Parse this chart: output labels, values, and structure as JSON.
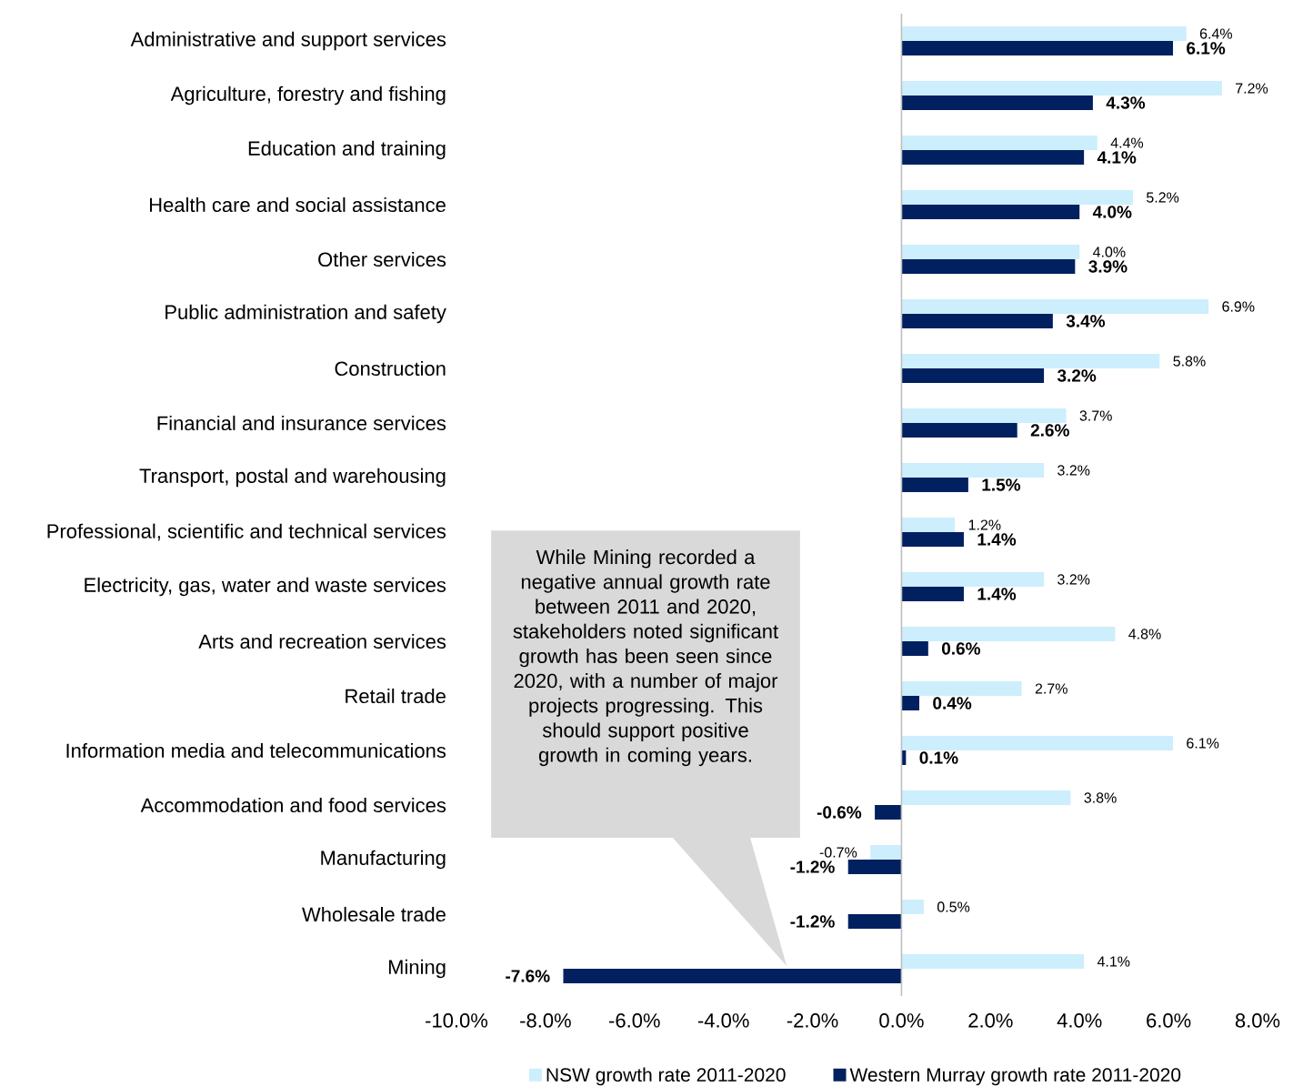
{
  "chart_data": {
    "type": "bar",
    "orientation": "horizontal",
    "categories": [
      "Administrative and support services",
      "Agriculture, forestry and fishing",
      "Education and training",
      "Health care and social assistance",
      "Other services",
      "Public administration and safety",
      "Construction",
      "Financial and insurance services",
      "Transport, postal and warehousing",
      "Professional, scientific and technical services",
      "Electricity, gas, water and waste services",
      "Arts and recreation services",
      "Retail trade",
      "Information media and telecommunications",
      "Accommodation and food services",
      "Manufacturing",
      "Wholesale trade",
      "Mining"
    ],
    "series": [
      {
        "name": "NSW growth rate 2011-2020",
        "color": "#cdeefc",
        "values": [
          6.4,
          7.2,
          4.4,
          5.2,
          4.0,
          6.9,
          5.8,
          3.7,
          3.2,
          1.2,
          3.2,
          4.8,
          2.7,
          6.1,
          3.8,
          -0.7,
          0.5,
          4.1
        ],
        "value_labels": [
          "6.4%",
          "7.2%",
          "4.4%",
          "5.2%",
          "4.0%",
          "6.9%",
          "5.8%",
          "3.7%",
          "3.2%",
          "1.2%",
          "3.2%",
          "4.8%",
          "2.7%",
          "6.1%",
          "3.8%",
          "-0.7%",
          "0.5%",
          "4.1%"
        ]
      },
      {
        "name": "Western Murray growth rate 2011-2020",
        "color": "#002060",
        "values": [
          6.1,
          4.3,
          4.1,
          4.0,
          3.9,
          3.4,
          3.2,
          2.6,
          1.5,
          1.4,
          1.4,
          0.6,
          0.4,
          0.1,
          -0.6,
          -1.2,
          -1.2,
          -7.6
        ],
        "value_labels": [
          "6.1%",
          "4.3%",
          "4.1%",
          "4.0%",
          "3.9%",
          "3.4%",
          "3.2%",
          "2.6%",
          "1.5%",
          "1.4%",
          "1.4%",
          "0.6%",
          "0.4%",
          "0.1%",
          "-0.6%",
          "-1.2%",
          "-1.2%",
          "-7.6%"
        ]
      }
    ],
    "xlim": [
      -10,
      8
    ],
    "xticks": [
      {
        "value": -10,
        "label": "-10.0%"
      },
      {
        "value": -8,
        "label": "-8.0%"
      },
      {
        "value": -6,
        "label": "-6.0%"
      },
      {
        "value": -4,
        "label": "-4.0%"
      },
      {
        "value": -2,
        "label": "-2.0%"
      },
      {
        "value": 0,
        "label": "0.0%"
      },
      {
        "value": 2,
        "label": "2.0%"
      },
      {
        "value": 4,
        "label": "4.0%"
      },
      {
        "value": 6,
        "label": "6.0%"
      },
      {
        "value": 8,
        "label": "8.0%"
      }
    ],
    "grid": false,
    "ref_lines": [
      {
        "axis": "x",
        "value": 0,
        "color": "#bfbfbf"
      }
    ],
    "legend": "bottom",
    "annotations": [
      "While Mining recorded a negative annual growth rate between 2011 and 2020, stakeholders noted significant growth has been seen since 2020, with a number of major projects progressing. This should support positive growth in coming years."
    ]
  }
}
